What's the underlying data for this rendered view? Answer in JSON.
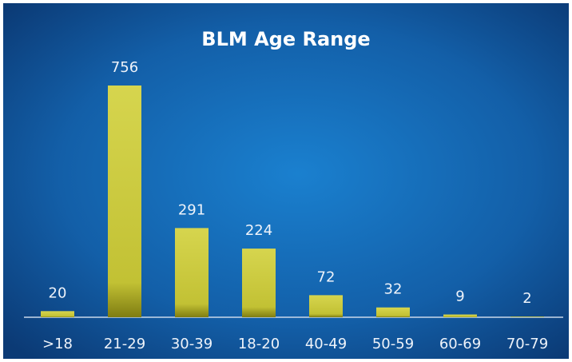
{
  "chart_data": {
    "type": "bar",
    "title": "BLM Age Range",
    "categories": [
      ">18",
      "21-29",
      "30-39",
      "18-20",
      "40-49",
      "50-59",
      "60-69",
      "70-79"
    ],
    "values": [
      20,
      756,
      291,
      224,
      72,
      32,
      9,
      2
    ],
    "color": "#c9c83c"
  }
}
